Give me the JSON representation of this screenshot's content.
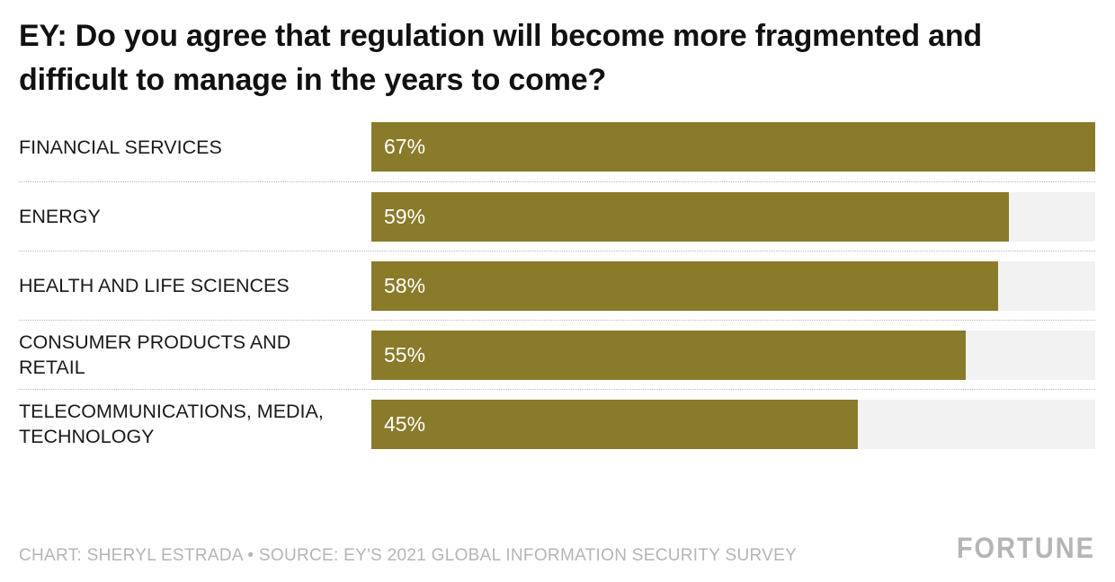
{
  "title": "EY: Do you agree that regulation will become more fragmented and difficult to manage in the years to come?",
  "chart_data": {
    "type": "bar",
    "orientation": "horizontal",
    "title": "EY: Do you agree that regulation will become more fragmented and difficult to manage in the years to come?",
    "categories": [
      "FINANCIAL SERVICES",
      "ENERGY",
      "HEALTH AND LIFE SCIENCES",
      "CONSUMER PRODUCTS AND RETAIL",
      "TELECOMMUNICATIONS, MEDIA, TECHNOLOGY"
    ],
    "values": [
      67,
      59,
      58,
      55,
      45
    ],
    "value_labels": [
      "67%",
      "59%",
      "58%",
      "55%",
      "45%"
    ],
    "unit": "%",
    "scale_max": 67,
    "xlabel": "",
    "ylabel": "",
    "grid": "dotted row separators",
    "legend": "none",
    "value_label_position": "inside-left"
  },
  "colors": {
    "bar": "#8a7b2a",
    "track": "#f2f2f2",
    "title_text": "#111111",
    "label_text": "#1a1a1a",
    "value_text": "#ffffff",
    "footer_text": "#b5b5b5",
    "separator": "#b8b8b8"
  },
  "footer": {
    "credit": "CHART: SHERYL ESTRADA • SOURCE: EY'S 2021 GLOBAL INFORMATION SECURITY SURVEY",
    "brand": "FORTUNE"
  }
}
